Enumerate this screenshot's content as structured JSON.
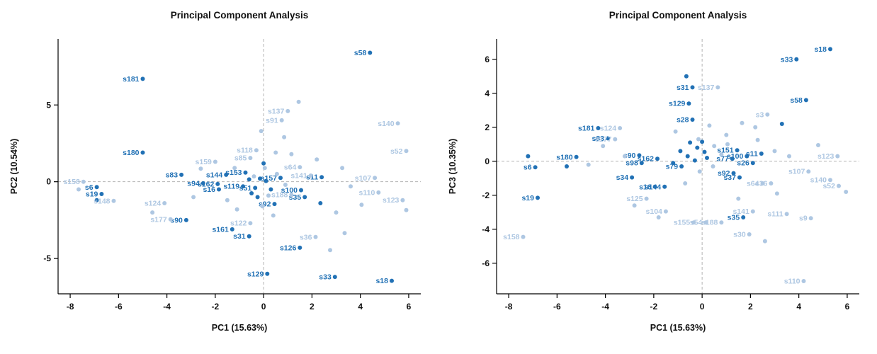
{
  "page": {
    "background": "#ffffff"
  },
  "chart_data": [
    {
      "type": "scatter",
      "title": "Principal Component Analysis",
      "xlabel": "PC1 (15.63%)",
      "ylabel": "PC2 (10.54%)",
      "xlim": [
        -8.5,
        6.5
      ],
      "ylim": [
        -7.3,
        9.3
      ],
      "xticks": [
        -8,
        -6,
        -4,
        -2,
        0,
        2,
        4,
        6
      ],
      "yticks": [
        -5,
        0,
        5
      ],
      "zero_lines": true,
      "grid": "dashed zero reference lines only",
      "legend": "none",
      "series": [
        {
          "name": "group-dark",
          "color": "#2171b5",
          "points": [
            [
              4.4,
              8.4,
              "s58"
            ],
            [
              -5.0,
              6.7,
              "s181"
            ],
            [
              -5.0,
              1.9,
              "s180"
            ],
            [
              -3.4,
              0.45,
              "s83"
            ],
            [
              -2.5,
              -0.1,
              "s94"
            ],
            [
              -6.9,
              -0.35,
              "s6"
            ],
            [
              -6.7,
              -0.8,
              "s19"
            ],
            [
              -6.9,
              -1.2,
              ""
            ],
            [
              -3.2,
              -2.5,
              "s90"
            ],
            [
              -1.3,
              -3.1,
              "s161"
            ],
            [
              -0.6,
              -3.55,
              "s31"
            ],
            [
              0.15,
              -6.0,
              "s129"
            ],
            [
              1.5,
              -4.3,
              "s126"
            ],
            [
              2.95,
              -6.2,
              "s33"
            ],
            [
              5.3,
              -6.45,
              "s18"
            ],
            [
              1.7,
              -1.0,
              "s35"
            ],
            [
              1.55,
              -0.55,
              "s100"
            ],
            [
              2.4,
              0.3,
              "s11"
            ],
            [
              -1.55,
              0.45,
              "s144"
            ],
            [
              -1.9,
              -0.15,
              "s162"
            ],
            [
              -1.85,
              -0.5,
              "s16"
            ],
            [
              -0.75,
              0.6,
              "s153"
            ],
            [
              0.45,
              -1.45,
              "s92"
            ],
            [
              0.7,
              0.25,
              "s157"
            ],
            [
              -0.85,
              -0.3,
              "s119"
            ],
            [
              -0.35,
              -0.4,
              "s51"
            ],
            [
              -0.15,
              0.2,
              ""
            ],
            [
              0.1,
              0.05,
              ""
            ],
            [
              -0.5,
              -0.75,
              ""
            ],
            [
              0.3,
              -0.5,
              ""
            ],
            [
              -0.25,
              -1.0,
              ""
            ],
            [
              2.35,
              -1.4,
              ""
            ],
            [
              0.0,
              1.2,
              ""
            ],
            [
              -0.6,
              0.15,
              ""
            ]
          ]
        },
        {
          "name": "group-light",
          "color": "#aec7e2",
          "points": [
            [
              -7.45,
              0.0,
              "s158"
            ],
            [
              -7.65,
              -0.5,
              ""
            ],
            [
              -6.2,
              -1.25,
              "s148"
            ],
            [
              -4.1,
              -1.4,
              "s124"
            ],
            [
              -3.85,
              -2.45,
              "s177"
            ],
            [
              -4.6,
              -2.0,
              ""
            ],
            [
              -2.0,
              1.3,
              "s159"
            ],
            [
              -2.6,
              0.85,
              ""
            ],
            [
              1.0,
              4.6,
              "s137"
            ],
            [
              0.75,
              4.0,
              "s91"
            ],
            [
              1.45,
              5.2,
              ""
            ],
            [
              5.55,
              3.8,
              "s140"
            ],
            [
              5.9,
              2.0,
              "s52"
            ],
            [
              -0.3,
              2.05,
              "s118"
            ],
            [
              -0.55,
              1.55,
              "s85"
            ],
            [
              1.5,
              0.95,
              "s64"
            ],
            [
              1.95,
              0.4,
              "s141"
            ],
            [
              4.6,
              0.25,
              "s107"
            ],
            [
              4.75,
              -0.7,
              "s110"
            ],
            [
              5.75,
              -1.2,
              "s123"
            ],
            [
              5.9,
              -1.85,
              ""
            ],
            [
              1.15,
              -0.85,
              "s188"
            ],
            [
              2.15,
              -3.6,
              "s36"
            ],
            [
              -0.55,
              -2.7,
              "s122"
            ],
            [
              2.75,
              -4.45,
              ""
            ],
            [
              3.35,
              -3.35,
              ""
            ],
            [
              0.4,
              -2.2,
              ""
            ],
            [
              -1.1,
              -1.8,
              ""
            ],
            [
              -0.1,
              3.3,
              ""
            ],
            [
              0.85,
              2.9,
              ""
            ],
            [
              2.2,
              1.45,
              ""
            ],
            [
              3.25,
              0.9,
              ""
            ],
            [
              3.6,
              -0.3,
              ""
            ],
            [
              4.05,
              -1.5,
              ""
            ],
            [
              0.05,
              0.9,
              ""
            ],
            [
              -0.4,
              0.35,
              ""
            ],
            [
              0.55,
              0.5,
              ""
            ],
            [
              0.9,
              -0.2,
              ""
            ],
            [
              -1.2,
              0.9,
              ""
            ],
            [
              0.2,
              -0.9,
              ""
            ],
            [
              1.15,
              1.8,
              ""
            ],
            [
              -1.5,
              -1.2,
              ""
            ],
            [
              -2.9,
              -1.0,
              ""
            ],
            [
              -0.05,
              -1.6,
              ""
            ],
            [
              0.5,
              1.9,
              ""
            ],
            [
              3.0,
              -2.0,
              ""
            ]
          ]
        }
      ]
    },
    {
      "type": "scatter",
      "title": "Principal Component Analysis",
      "xlabel": "PC1 (15.63%)",
      "ylabel": "PC3 (10.35%)",
      "xlim": [
        -8.5,
        6.5
      ],
      "ylim": [
        -7.8,
        7.2
      ],
      "xticks": [
        -8,
        -6,
        -4,
        -2,
        0,
        2,
        4,
        6
      ],
      "yticks": [
        -6,
        -4,
        -2,
        0,
        2,
        4,
        6
      ],
      "zero_lines": true,
      "grid": "dashed zero reference lines only",
      "legend": "none",
      "series": [
        {
          "name": "group-dark",
          "color": "#2171b5",
          "points": [
            [
              5.3,
              6.6,
              "s18"
            ],
            [
              3.9,
              6.0,
              "s33"
            ],
            [
              4.3,
              3.6,
              "s58"
            ],
            [
              -0.65,
              5.0,
              ""
            ],
            [
              -0.4,
              4.35,
              "s31"
            ],
            [
              -0.55,
              3.4,
              "s129"
            ],
            [
              -4.3,
              1.95,
              "s181"
            ],
            [
              -3.9,
              1.35,
              "s83"
            ],
            [
              -5.2,
              0.25,
              "s180"
            ],
            [
              -7.2,
              0.3,
              ""
            ],
            [
              -6.9,
              -0.35,
              "s6"
            ],
            [
              -6.8,
              -2.15,
              "s19"
            ],
            [
              -5.6,
              -0.3,
              ""
            ],
            [
              -2.6,
              0.35,
              "s90"
            ],
            [
              -2.5,
              -0.1,
              "s98"
            ],
            [
              -2.9,
              -0.95,
              "s34"
            ],
            [
              -1.95,
              -1.5,
              "s16"
            ],
            [
              -1.55,
              -1.5,
              "s144"
            ],
            [
              1.7,
              -3.3,
              "s35"
            ],
            [
              2.45,
              0.45,
              "s11"
            ],
            [
              1.85,
              0.3,
              "s100"
            ],
            [
              1.45,
              0.65,
              "s151"
            ],
            [
              1.25,
              0.15,
              "s77"
            ],
            [
              2.1,
              -0.1,
              "s26"
            ],
            [
              1.3,
              -0.7,
              "s92"
            ],
            [
              1.55,
              -0.95,
              "s37"
            ],
            [
              -0.85,
              -0.3,
              "s79"
            ],
            [
              -1.85,
              0.15,
              "s162"
            ],
            [
              -0.4,
              2.45,
              "s28"
            ],
            [
              -0.5,
              1.1,
              ""
            ],
            [
              -0.2,
              0.8,
              ""
            ],
            [
              0.1,
              0.55,
              ""
            ],
            [
              -0.6,
              0.3,
              ""
            ],
            [
              -0.3,
              0.05,
              ""
            ],
            [
              0.2,
              0.2,
              ""
            ],
            [
              -0.9,
              0.6,
              ""
            ],
            [
              0.0,
              1.15,
              ""
            ],
            [
              -1.2,
              -0.1,
              ""
            ],
            [
              3.3,
              2.2,
              ""
            ]
          ]
        },
        {
          "name": "group-light",
          "color": "#aec7e2",
          "points": [
            [
              -3.4,
              1.95,
              "s124"
            ],
            [
              -3.6,
              1.3,
              "s177"
            ],
            [
              0.65,
              4.35,
              "s137"
            ],
            [
              2.7,
              2.75,
              "s3"
            ],
            [
              5.6,
              0.3,
              "s123"
            ],
            [
              4.4,
              -0.6,
              "s107"
            ],
            [
              5.3,
              -1.1,
              "s140"
            ],
            [
              5.65,
              -1.45,
              "s52"
            ],
            [
              5.95,
              -1.8,
              ""
            ],
            [
              2.1,
              -2.95,
              "s141"
            ],
            [
              3.5,
              -3.1,
              "s111"
            ],
            [
              4.5,
              -3.35,
              "s9"
            ],
            [
              1.95,
              -4.3,
              "s30"
            ],
            [
              -1.5,
              -2.95,
              "s104"
            ],
            [
              -2.3,
              -2.2,
              "s125"
            ],
            [
              -0.35,
              -3.6,
              "s155"
            ],
            [
              0.15,
              -3.6,
              "s54"
            ],
            [
              0.8,
              -3.6,
              "s188"
            ],
            [
              -7.4,
              -4.45,
              "s158"
            ],
            [
              4.2,
              -7.05,
              "s110"
            ],
            [
              2.5,
              -1.3,
              "s64"
            ],
            [
              2.85,
              -1.3,
              "s36"
            ],
            [
              2.6,
              -4.7,
              ""
            ],
            [
              3.1,
              -1.9,
              ""
            ],
            [
              0.3,
              2.1,
              ""
            ],
            [
              1.0,
              1.55,
              ""
            ],
            [
              1.65,
              2.25,
              ""
            ],
            [
              2.3,
              1.25,
              ""
            ],
            [
              -0.15,
              1.3,
              ""
            ],
            [
              -4.1,
              0.9,
              ""
            ],
            [
              -3.2,
              0.3,
              ""
            ],
            [
              -2.8,
              -2.6,
              ""
            ],
            [
              -1.8,
              -3.3,
              ""
            ],
            [
              4.8,
              0.95,
              ""
            ],
            [
              0.5,
              0.9,
              ""
            ],
            [
              0.8,
              0.4,
              ""
            ],
            [
              -0.1,
              -0.6,
              ""
            ],
            [
              0.45,
              -0.3,
              ""
            ],
            [
              1.05,
              1.0,
              ""
            ],
            [
              3.6,
              0.3,
              ""
            ],
            [
              -1.1,
              1.75,
              ""
            ],
            [
              2.2,
              2.0,
              ""
            ],
            [
              1.5,
              -2.2,
              ""
            ],
            [
              -0.7,
              -1.3,
              ""
            ],
            [
              -4.7,
              -0.2,
              ""
            ],
            [
              3.0,
              0.6,
              ""
            ]
          ]
        }
      ]
    }
  ]
}
